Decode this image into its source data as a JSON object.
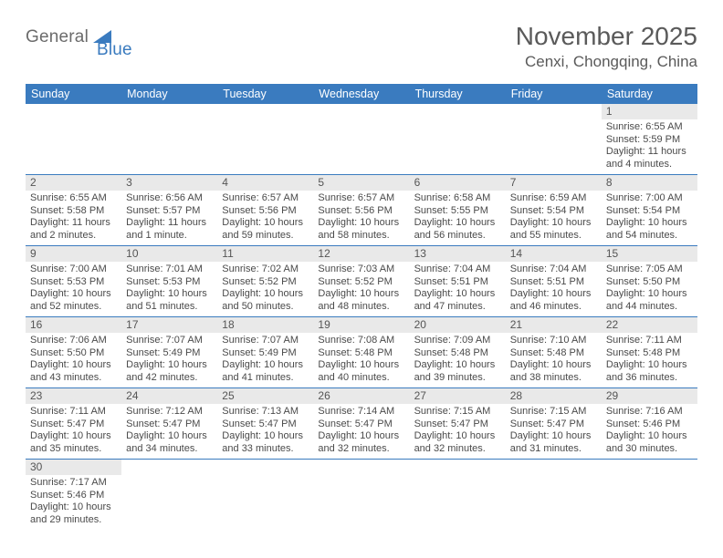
{
  "logo": {
    "part1": "General",
    "part2": "Blue"
  },
  "title": "November 2025",
  "location": "Cenxi, Chongqing, China",
  "colors": {
    "header_bg": "#3a7bbf",
    "header_fg": "#ffffff",
    "daynum_bg": "#e9e9e9",
    "border": "#3a7bbf",
    "text": "#404040"
  },
  "weekdays": [
    "Sunday",
    "Monday",
    "Tuesday",
    "Wednesday",
    "Thursday",
    "Friday",
    "Saturday"
  ],
  "weeks": [
    [
      {
        "day": "",
        "sunrise": "",
        "sunset": "",
        "daylight": ""
      },
      {
        "day": "",
        "sunrise": "",
        "sunset": "",
        "daylight": ""
      },
      {
        "day": "",
        "sunrise": "",
        "sunset": "",
        "daylight": ""
      },
      {
        "day": "",
        "sunrise": "",
        "sunset": "",
        "daylight": ""
      },
      {
        "day": "",
        "sunrise": "",
        "sunset": "",
        "daylight": ""
      },
      {
        "day": "",
        "sunrise": "",
        "sunset": "",
        "daylight": ""
      },
      {
        "day": "1",
        "sunrise": "Sunrise: 6:55 AM",
        "sunset": "Sunset: 5:59 PM",
        "daylight": "Daylight: 11 hours and 4 minutes."
      }
    ],
    [
      {
        "day": "2",
        "sunrise": "Sunrise: 6:55 AM",
        "sunset": "Sunset: 5:58 PM",
        "daylight": "Daylight: 11 hours and 2 minutes."
      },
      {
        "day": "3",
        "sunrise": "Sunrise: 6:56 AM",
        "sunset": "Sunset: 5:57 PM",
        "daylight": "Daylight: 11 hours and 1 minute."
      },
      {
        "day": "4",
        "sunrise": "Sunrise: 6:57 AM",
        "sunset": "Sunset: 5:56 PM",
        "daylight": "Daylight: 10 hours and 59 minutes."
      },
      {
        "day": "5",
        "sunrise": "Sunrise: 6:57 AM",
        "sunset": "Sunset: 5:56 PM",
        "daylight": "Daylight: 10 hours and 58 minutes."
      },
      {
        "day": "6",
        "sunrise": "Sunrise: 6:58 AM",
        "sunset": "Sunset: 5:55 PM",
        "daylight": "Daylight: 10 hours and 56 minutes."
      },
      {
        "day": "7",
        "sunrise": "Sunrise: 6:59 AM",
        "sunset": "Sunset: 5:54 PM",
        "daylight": "Daylight: 10 hours and 55 minutes."
      },
      {
        "day": "8",
        "sunrise": "Sunrise: 7:00 AM",
        "sunset": "Sunset: 5:54 PM",
        "daylight": "Daylight: 10 hours and 54 minutes."
      }
    ],
    [
      {
        "day": "9",
        "sunrise": "Sunrise: 7:00 AM",
        "sunset": "Sunset: 5:53 PM",
        "daylight": "Daylight: 10 hours and 52 minutes."
      },
      {
        "day": "10",
        "sunrise": "Sunrise: 7:01 AM",
        "sunset": "Sunset: 5:53 PM",
        "daylight": "Daylight: 10 hours and 51 minutes."
      },
      {
        "day": "11",
        "sunrise": "Sunrise: 7:02 AM",
        "sunset": "Sunset: 5:52 PM",
        "daylight": "Daylight: 10 hours and 50 minutes."
      },
      {
        "day": "12",
        "sunrise": "Sunrise: 7:03 AM",
        "sunset": "Sunset: 5:52 PM",
        "daylight": "Daylight: 10 hours and 48 minutes."
      },
      {
        "day": "13",
        "sunrise": "Sunrise: 7:04 AM",
        "sunset": "Sunset: 5:51 PM",
        "daylight": "Daylight: 10 hours and 47 minutes."
      },
      {
        "day": "14",
        "sunrise": "Sunrise: 7:04 AM",
        "sunset": "Sunset: 5:51 PM",
        "daylight": "Daylight: 10 hours and 46 minutes."
      },
      {
        "day": "15",
        "sunrise": "Sunrise: 7:05 AM",
        "sunset": "Sunset: 5:50 PM",
        "daylight": "Daylight: 10 hours and 44 minutes."
      }
    ],
    [
      {
        "day": "16",
        "sunrise": "Sunrise: 7:06 AM",
        "sunset": "Sunset: 5:50 PM",
        "daylight": "Daylight: 10 hours and 43 minutes."
      },
      {
        "day": "17",
        "sunrise": "Sunrise: 7:07 AM",
        "sunset": "Sunset: 5:49 PM",
        "daylight": "Daylight: 10 hours and 42 minutes."
      },
      {
        "day": "18",
        "sunrise": "Sunrise: 7:07 AM",
        "sunset": "Sunset: 5:49 PM",
        "daylight": "Daylight: 10 hours and 41 minutes."
      },
      {
        "day": "19",
        "sunrise": "Sunrise: 7:08 AM",
        "sunset": "Sunset: 5:48 PM",
        "daylight": "Daylight: 10 hours and 40 minutes."
      },
      {
        "day": "20",
        "sunrise": "Sunrise: 7:09 AM",
        "sunset": "Sunset: 5:48 PM",
        "daylight": "Daylight: 10 hours and 39 minutes."
      },
      {
        "day": "21",
        "sunrise": "Sunrise: 7:10 AM",
        "sunset": "Sunset: 5:48 PM",
        "daylight": "Daylight: 10 hours and 38 minutes."
      },
      {
        "day": "22",
        "sunrise": "Sunrise: 7:11 AM",
        "sunset": "Sunset: 5:48 PM",
        "daylight": "Daylight: 10 hours and 36 minutes."
      }
    ],
    [
      {
        "day": "23",
        "sunrise": "Sunrise: 7:11 AM",
        "sunset": "Sunset: 5:47 PM",
        "daylight": "Daylight: 10 hours and 35 minutes."
      },
      {
        "day": "24",
        "sunrise": "Sunrise: 7:12 AM",
        "sunset": "Sunset: 5:47 PM",
        "daylight": "Daylight: 10 hours and 34 minutes."
      },
      {
        "day": "25",
        "sunrise": "Sunrise: 7:13 AM",
        "sunset": "Sunset: 5:47 PM",
        "daylight": "Daylight: 10 hours and 33 minutes."
      },
      {
        "day": "26",
        "sunrise": "Sunrise: 7:14 AM",
        "sunset": "Sunset: 5:47 PM",
        "daylight": "Daylight: 10 hours and 32 minutes."
      },
      {
        "day": "27",
        "sunrise": "Sunrise: 7:15 AM",
        "sunset": "Sunset: 5:47 PM",
        "daylight": "Daylight: 10 hours and 32 minutes."
      },
      {
        "day": "28",
        "sunrise": "Sunrise: 7:15 AM",
        "sunset": "Sunset: 5:47 PM",
        "daylight": "Daylight: 10 hours and 31 minutes."
      },
      {
        "day": "29",
        "sunrise": "Sunrise: 7:16 AM",
        "sunset": "Sunset: 5:46 PM",
        "daylight": "Daylight: 10 hours and 30 minutes."
      }
    ],
    [
      {
        "day": "30",
        "sunrise": "Sunrise: 7:17 AM",
        "sunset": "Sunset: 5:46 PM",
        "daylight": "Daylight: 10 hours and 29 minutes."
      },
      {
        "day": "",
        "sunrise": "",
        "sunset": "",
        "daylight": ""
      },
      {
        "day": "",
        "sunrise": "",
        "sunset": "",
        "daylight": ""
      },
      {
        "day": "",
        "sunrise": "",
        "sunset": "",
        "daylight": ""
      },
      {
        "day": "",
        "sunrise": "",
        "sunset": "",
        "daylight": ""
      },
      {
        "day": "",
        "sunrise": "",
        "sunset": "",
        "daylight": ""
      },
      {
        "day": "",
        "sunrise": "",
        "sunset": "",
        "daylight": ""
      }
    ]
  ]
}
